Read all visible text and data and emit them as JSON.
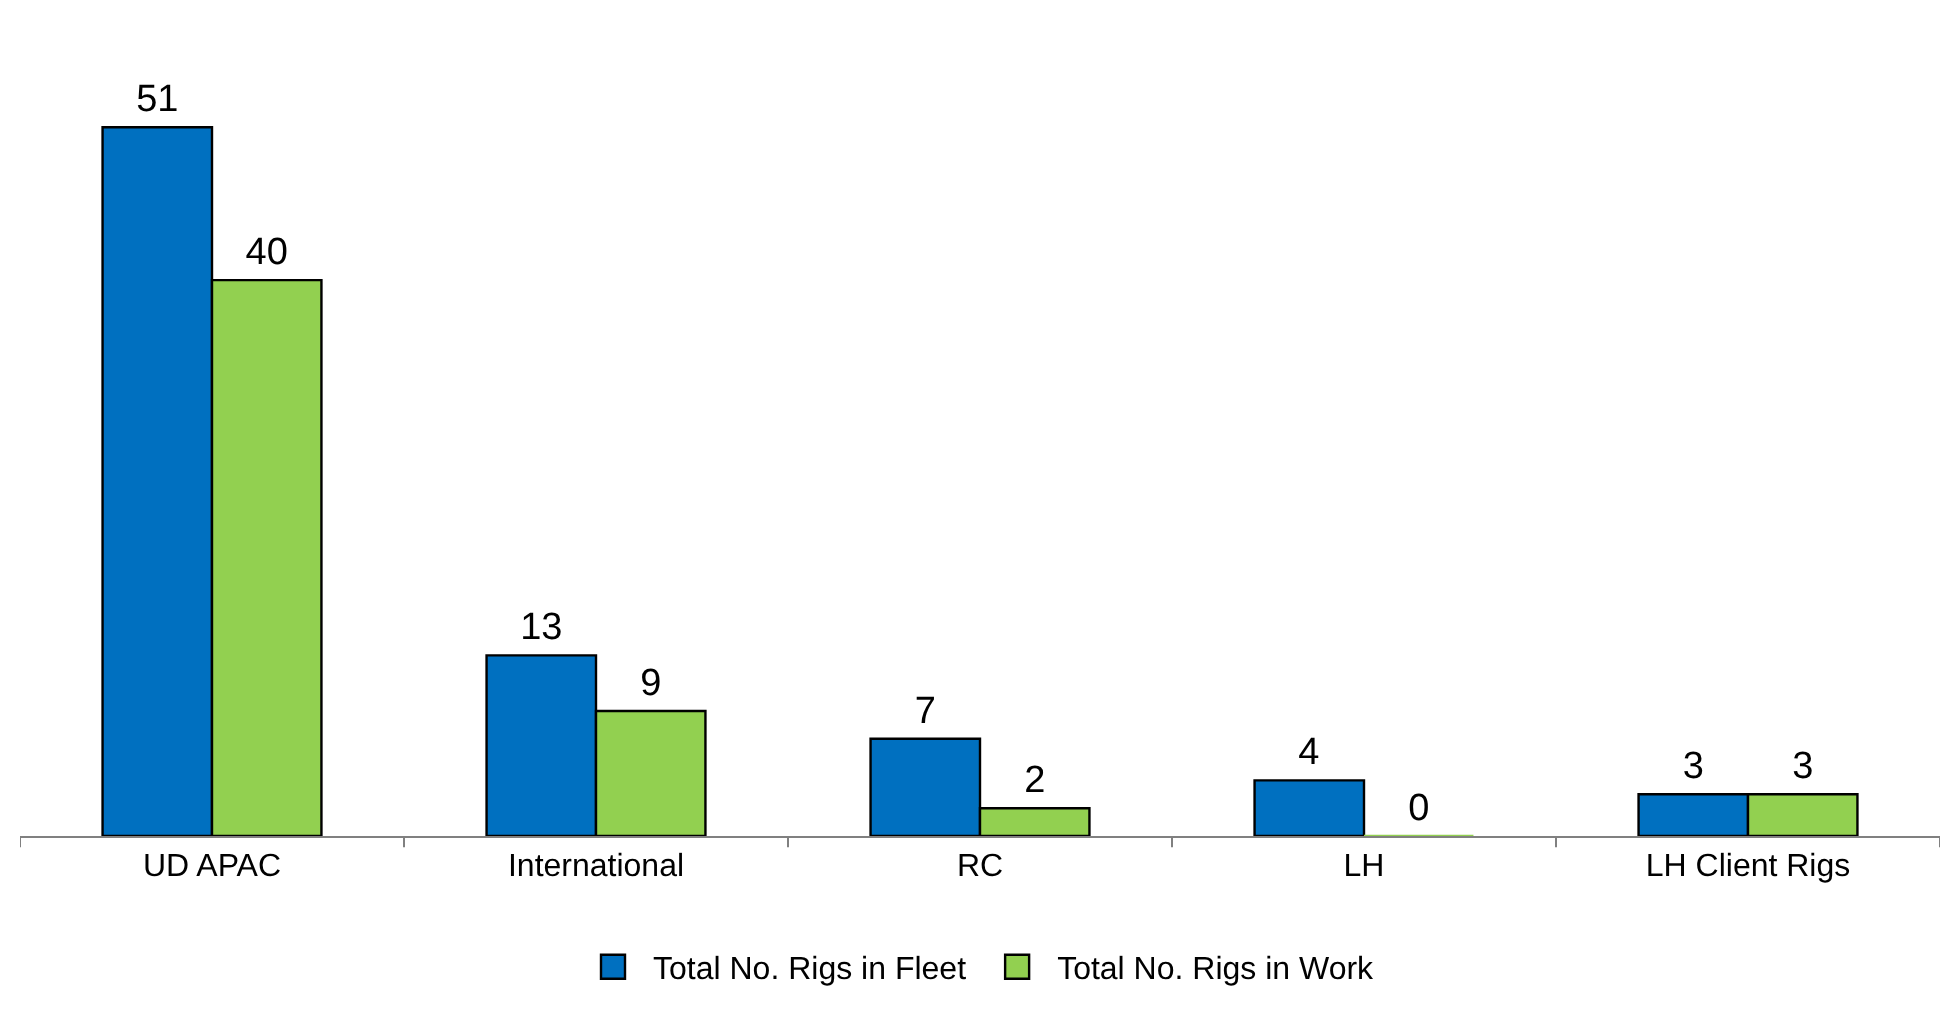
{
  "chart_data": {
    "type": "bar",
    "categories": [
      "UD APAC",
      "International",
      "RC",
      "LH",
      "LH Client Rigs"
    ],
    "series": [
      {
        "name": "Total No. Rigs in Fleet",
        "color": "#0070c0",
        "values": [
          51,
          13,
          7,
          4,
          3
        ]
      },
      {
        "name": "Total No. Rigs in Work",
        "color": "#92d050",
        "values": [
          40,
          9,
          2,
          0,
          3
        ]
      }
    ],
    "data_labels": true,
    "legend": "bottom"
  }
}
